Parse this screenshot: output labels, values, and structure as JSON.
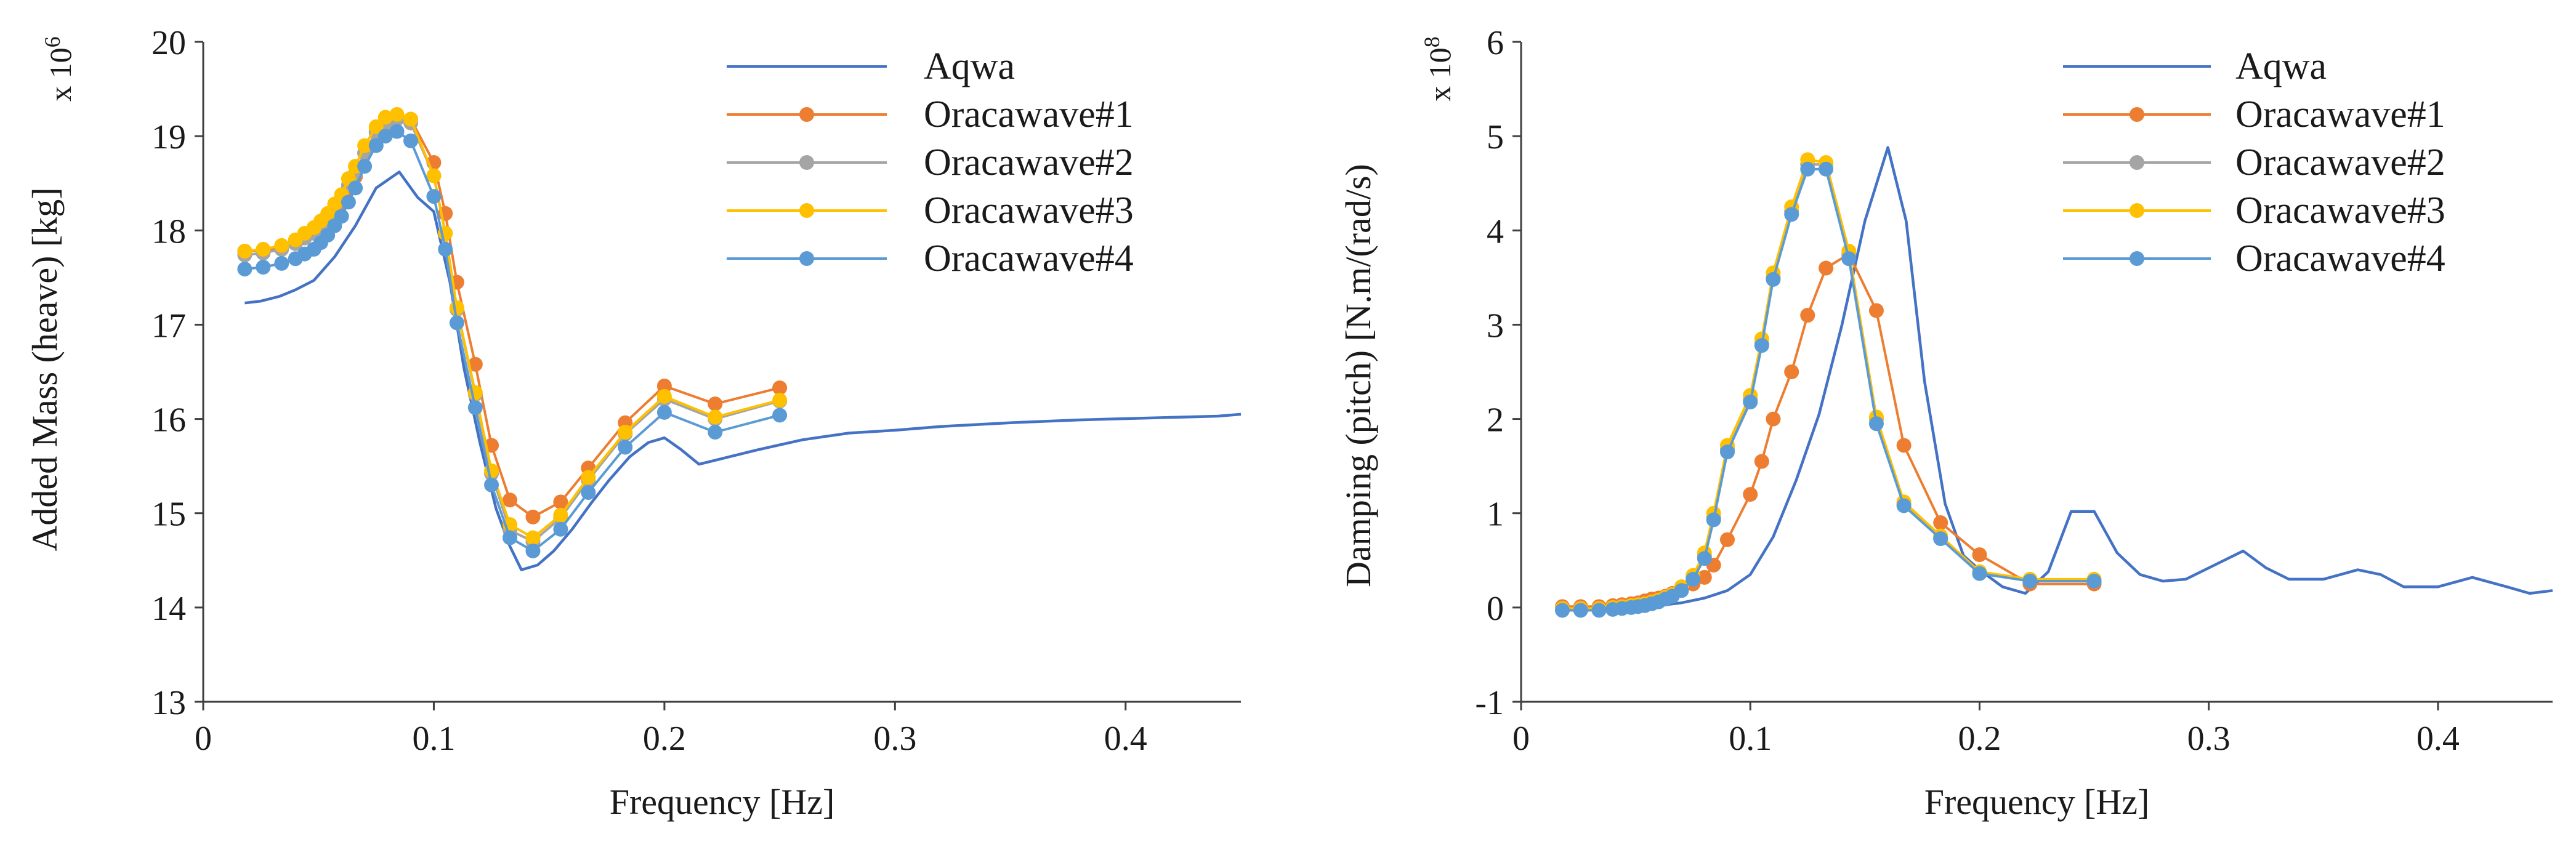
{
  "colors": {
    "aqwa": "#4472C4",
    "oracawave1": "#ED7D31",
    "oracawave2": "#A5A5A5",
    "oracawave3": "#FFC000",
    "oracawave4": "#5B9BD5",
    "axis": "#404040"
  },
  "chart_data": [
    {
      "type": "line",
      "title": "",
      "xlabel": "Frequency [Hz]",
      "ylabel": "Added Mass (heave)  [kg]",
      "multiplier_base": "x 10",
      "multiplier_exp": "6",
      "xlim": [
        0,
        0.45
      ],
      "ylim": [
        13,
        20
      ],
      "xticks": [
        0,
        0.1,
        0.2,
        0.3,
        0.4
      ],
      "xtick_labels": [
        "0",
        "0.1",
        "0.2",
        "0.3",
        "0.4"
      ],
      "yticks": [
        13,
        14,
        15,
        16,
        17,
        18,
        19,
        20
      ],
      "ytick_labels": [
        "13",
        "14",
        "15",
        "16",
        "17",
        "18",
        "19",
        "20"
      ],
      "legend_position": "top-right",
      "series": [
        {
          "name": "Aqwa",
          "color_key": "aqwa",
          "markers": false,
          "x": [
            0.018,
            0.025,
            0.033,
            0.04,
            0.048,
            0.057,
            0.066,
            0.075,
            0.085,
            0.093,
            0.1,
            0.107,
            0.113,
            0.12,
            0.127,
            0.133,
            0.138,
            0.145,
            0.152,
            0.16,
            0.168,
            0.176,
            0.185,
            0.193,
            0.2,
            0.207,
            0.215,
            0.225,
            0.24,
            0.26,
            0.28,
            0.3,
            0.32,
            0.35,
            0.38,
            0.41,
            0.44,
            0.45
          ],
          "y": [
            17.23,
            17.25,
            17.3,
            17.37,
            17.47,
            17.72,
            18.05,
            18.45,
            18.62,
            18.35,
            18.2,
            17.45,
            16.55,
            15.75,
            15.05,
            14.65,
            14.4,
            14.45,
            14.6,
            14.83,
            15.1,
            15.35,
            15.6,
            15.75,
            15.8,
            15.68,
            15.52,
            15.58,
            15.67,
            15.78,
            15.85,
            15.88,
            15.92,
            15.96,
            15.99,
            16.01,
            16.03,
            16.05
          ]
        },
        {
          "name": "Oracawave#1",
          "color_key": "oracawave1",
          "markers": true,
          "x": [
            0.018,
            0.026,
            0.034,
            0.04,
            0.044,
            0.048,
            0.051,
            0.054,
            0.057,
            0.06,
            0.063,
            0.066,
            0.07,
            0.075,
            0.079,
            0.084,
            0.09,
            0.1,
            0.105,
            0.11,
            0.118,
            0.125,
            0.133,
            0.143,
            0.155,
            0.167,
            0.183,
            0.2,
            0.222,
            0.25
          ],
          "y": [
            17.78,
            17.79,
            17.82,
            17.88,
            17.92,
            17.98,
            18.05,
            18.12,
            18.22,
            18.3,
            18.45,
            18.57,
            18.82,
            19.05,
            19.15,
            19.2,
            19.18,
            18.72,
            18.18,
            17.45,
            16.58,
            15.72,
            15.14,
            14.96,
            15.12,
            15.48,
            15.96,
            16.35,
            16.16,
            16.33
          ]
        },
        {
          "name": "Oracawave#2",
          "color_key": "oracawave2",
          "markers": true,
          "x": [
            0.018,
            0.026,
            0.034,
            0.04,
            0.044,
            0.048,
            0.051,
            0.054,
            0.057,
            0.06,
            0.063,
            0.066,
            0.07,
            0.075,
            0.079,
            0.084,
            0.09,
            0.1,
            0.105,
            0.11,
            0.118,
            0.125,
            0.133,
            0.143,
            0.155,
            0.167,
            0.183,
            0.2,
            0.222,
            0.25
          ],
          "y": [
            17.74,
            17.76,
            17.8,
            17.86,
            17.92,
            17.97,
            18.05,
            18.12,
            18.22,
            18.32,
            18.48,
            18.6,
            18.82,
            19.03,
            19.13,
            19.18,
            19.14,
            18.58,
            17.97,
            17.16,
            16.26,
            15.42,
            14.82,
            14.7,
            14.95,
            15.35,
            15.84,
            16.21,
            16.0,
            16.19
          ]
        },
        {
          "name": "Oracawave#3",
          "color_key": "oracawave3",
          "markers": true,
          "x": [
            0.018,
            0.026,
            0.034,
            0.04,
            0.044,
            0.048,
            0.051,
            0.054,
            0.057,
            0.06,
            0.063,
            0.066,
            0.07,
            0.075,
            0.079,
            0.084,
            0.09,
            0.1,
            0.105,
            0.11,
            0.118,
            0.125,
            0.133,
            0.143,
            0.155,
            0.167,
            0.183,
            0.2,
            0.222,
            0.25
          ],
          "y": [
            17.78,
            17.8,
            17.84,
            17.9,
            17.97,
            18.03,
            18.1,
            18.18,
            18.28,
            18.38,
            18.55,
            18.68,
            18.9,
            19.1,
            19.2,
            19.23,
            19.18,
            18.58,
            17.97,
            17.18,
            16.28,
            15.45,
            14.88,
            14.74,
            14.98,
            15.38,
            15.86,
            16.24,
            16.02,
            16.2
          ]
        },
        {
          "name": "Oracawave#4",
          "color_key": "oracawave4",
          "markers": true,
          "x": [
            0.018,
            0.026,
            0.034,
            0.04,
            0.044,
            0.048,
            0.051,
            0.054,
            0.057,
            0.06,
            0.063,
            0.066,
            0.07,
            0.075,
            0.079,
            0.084,
            0.09,
            0.1,
            0.105,
            0.11,
            0.118,
            0.125,
            0.133,
            0.143,
            0.155,
            0.167,
            0.183,
            0.2,
            0.222,
            0.25
          ],
          "y": [
            17.59,
            17.61,
            17.65,
            17.7,
            17.75,
            17.8,
            17.87,
            17.95,
            18.05,
            18.15,
            18.3,
            18.45,
            18.68,
            18.9,
            19.0,
            19.05,
            18.95,
            18.36,
            17.8,
            17.02,
            16.12,
            15.3,
            14.74,
            14.6,
            14.83,
            15.22,
            15.7,
            16.07,
            15.86,
            16.04
          ]
        }
      ]
    },
    {
      "type": "line",
      "title": "",
      "xlabel": "Frequency [Hz]",
      "ylabel": "Damping (pitch) [N.m/(rad/s)",
      "multiplier_base": "x 10",
      "multiplier_exp": "8",
      "xlim": [
        0,
        0.45
      ],
      "ylim": [
        -1,
        6
      ],
      "xticks": [
        0,
        0.1,
        0.2,
        0.3,
        0.4
      ],
      "xtick_labels": [
        "0",
        "0.1",
        "0.2",
        "0.3",
        "0.4"
      ],
      "yticks": [
        -1,
        0,
        1,
        2,
        3,
        4,
        5,
        6
      ],
      "ytick_labels": [
        "-1",
        "0",
        "1",
        "2",
        "3",
        "4",
        "5",
        "6"
      ],
      "legend_position": "top-right",
      "series": [
        {
          "name": "Aqwa",
          "color_key": "aqwa",
          "markers": false,
          "x": [
            0.018,
            0.03,
            0.04,
            0.05,
            0.06,
            0.07,
            0.08,
            0.09,
            0.1,
            0.11,
            0.12,
            0.13,
            0.14,
            0.15,
            0.16,
            0.168,
            0.176,
            0.185,
            0.193,
            0.2,
            0.21,
            0.22,
            0.23,
            0.24,
            0.25,
            0.26,
            0.27,
            0.28,
            0.29,
            0.3,
            0.315,
            0.325,
            0.335,
            0.35,
            0.365,
            0.375,
            0.385,
            0.4,
            0.415,
            0.43,
            0.44,
            0.45
          ],
          "y": [
            -0.02,
            -0.02,
            -0.01,
            0.0,
            0.02,
            0.05,
            0.1,
            0.18,
            0.35,
            0.75,
            1.35,
            2.05,
            3.0,
            4.1,
            4.88,
            4.1,
            2.4,
            1.1,
            0.55,
            0.4,
            0.22,
            0.15,
            0.38,
            1.02,
            1.02,
            0.58,
            0.35,
            0.28,
            0.3,
            0.42,
            0.6,
            0.42,
            0.3,
            0.3,
            0.4,
            0.35,
            0.22,
            0.22,
            0.32,
            0.22,
            0.15,
            0.18
          ]
        },
        {
          "name": "Oracawave#1",
          "color_key": "oracawave1",
          "markers": true,
          "x": [
            0.018,
            0.026,
            0.034,
            0.04,
            0.044,
            0.048,
            0.051,
            0.054,
            0.057,
            0.06,
            0.063,
            0.066,
            0.07,
            0.075,
            0.08,
            0.084,
            0.09,
            0.1,
            0.105,
            0.11,
            0.118,
            0.125,
            0.133,
            0.143,
            0.155,
            0.167,
            0.183,
            0.2,
            0.222,
            0.25
          ],
          "y": [
            0.01,
            0.01,
            0.01,
            0.02,
            0.03,
            0.04,
            0.05,
            0.07,
            0.09,
            0.1,
            0.12,
            0.15,
            0.2,
            0.25,
            0.32,
            0.45,
            0.72,
            1.2,
            1.55,
            2.0,
            2.5,
            3.1,
            3.6,
            3.75,
            3.15,
            1.72,
            0.9,
            0.56,
            0.25,
            0.25
          ]
        },
        {
          "name": "Oracawave#2",
          "color_key": "oracawave2",
          "markers": true,
          "x": [
            0.018,
            0.026,
            0.034,
            0.04,
            0.044,
            0.048,
            0.051,
            0.054,
            0.057,
            0.06,
            0.063,
            0.066,
            0.07,
            0.075,
            0.08,
            0.084,
            0.09,
            0.1,
            0.105,
            0.11,
            0.118,
            0.125,
            0.133,
            0.143,
            0.155,
            0.167,
            0.183,
            0.2,
            0.222,
            0.25
          ],
          "y": [
            -0.02,
            -0.02,
            -0.02,
            -0.01,
            0.0,
            0.01,
            0.02,
            0.03,
            0.05,
            0.07,
            0.1,
            0.13,
            0.2,
            0.32,
            0.55,
            0.95,
            1.68,
            2.2,
            2.8,
            3.5,
            4.2,
            4.7,
            4.7,
            3.74,
            2.0,
            1.1,
            0.75,
            0.37,
            0.28,
            0.28
          ]
        },
        {
          "name": "Oracawave#3",
          "color_key": "oracawave3",
          "markers": true,
          "x": [
            0.018,
            0.026,
            0.034,
            0.04,
            0.044,
            0.048,
            0.051,
            0.054,
            0.057,
            0.06,
            0.063,
            0.066,
            0.07,
            0.075,
            0.08,
            0.084,
            0.09,
            0.1,
            0.105,
            0.11,
            0.118,
            0.125,
            0.133,
            0.143,
            0.155,
            0.167,
            0.183,
            0.2,
            0.222,
            0.25
          ],
          "y": [
            -0.01,
            -0.01,
            -0.01,
            0.0,
            0.01,
            0.02,
            0.03,
            0.04,
            0.06,
            0.08,
            0.11,
            0.14,
            0.22,
            0.34,
            0.58,
            1.0,
            1.72,
            2.25,
            2.85,
            3.55,
            4.25,
            4.75,
            4.72,
            3.78,
            2.02,
            1.12,
            0.76,
            0.38,
            0.3,
            0.3
          ]
        },
        {
          "name": "Oracawave#4",
          "color_key": "oracawave4",
          "markers": true,
          "x": [
            0.018,
            0.026,
            0.034,
            0.04,
            0.044,
            0.048,
            0.051,
            0.054,
            0.057,
            0.06,
            0.063,
            0.066,
            0.07,
            0.075,
            0.08,
            0.084,
            0.09,
            0.1,
            0.105,
            0.11,
            0.118,
            0.125,
            0.133,
            0.143,
            0.155,
            0.167,
            0.183,
            0.2,
            0.222,
            0.25
          ],
          "y": [
            -0.03,
            -0.03,
            -0.03,
            -0.02,
            -0.01,
            0.0,
            0.01,
            0.02,
            0.04,
            0.06,
            0.09,
            0.12,
            0.18,
            0.3,
            0.52,
            0.93,
            1.65,
            2.18,
            2.78,
            3.48,
            4.17,
            4.65,
            4.65,
            3.7,
            1.95,
            1.08,
            0.73,
            0.36,
            0.28,
            0.28
          ]
        }
      ]
    }
  ]
}
